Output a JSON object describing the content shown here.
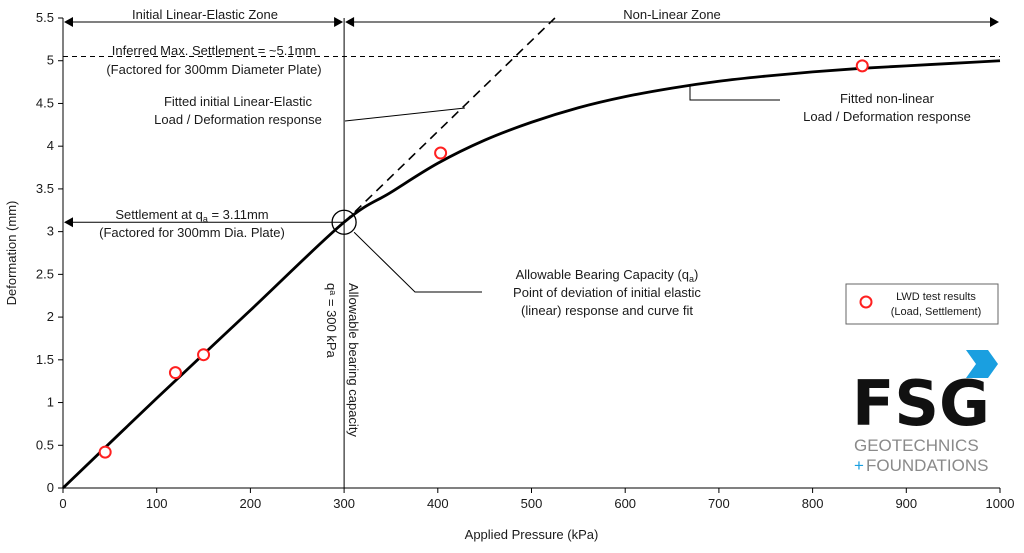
{
  "chart_data": {
    "type": "line",
    "xlabel": "Applied Pressure (kPa)",
    "ylabel": "Deformation (mm)",
    "xlim": [
      0,
      1000
    ],
    "ylim": [
      0,
      5.5
    ],
    "x_ticks": [
      0,
      100,
      200,
      300,
      400,
      500,
      600,
      700,
      800,
      900,
      1000
    ],
    "y_ticks": [
      0,
      0.5,
      1,
      1.5,
      2,
      2.5,
      3,
      3.5,
      4,
      4.5,
      5,
      5.5
    ],
    "grid": false,
    "series": [
      {
        "name": "LWD test results (Load, Settlement)",
        "kind": "scatter",
        "color": "#ff2020",
        "points": [
          [
            45,
            0.42
          ],
          [
            120,
            1.35
          ],
          [
            150,
            1.56
          ],
          [
            403,
            3.92
          ],
          [
            853,
            4.94
          ]
        ]
      },
      {
        "kind": "curve",
        "color": "#000000",
        "points": [
          [
            0,
            0
          ],
          [
            100,
            1.05
          ],
          [
            200,
            2.08
          ],
          [
            300,
            3.11
          ],
          [
            350,
            3.46
          ],
          [
            400,
            3.8
          ],
          [
            450,
            4.07
          ],
          [
            500,
            4.28
          ],
          [
            550,
            4.45
          ],
          [
            600,
            4.58
          ],
          [
            650,
            4.68
          ],
          [
            700,
            4.76
          ],
          [
            750,
            4.82
          ],
          [
            800,
            4.87
          ],
          [
            850,
            4.91
          ],
          [
            900,
            4.94
          ],
          [
            950,
            4.97
          ],
          [
            1000,
            5.0
          ]
        ]
      },
      {
        "kind": "dashed-line",
        "color": "#000000",
        "points": [
          [
            300,
            3.11
          ],
          [
            525,
            5.5
          ]
        ]
      }
    ],
    "reference_lines": {
      "settlement_max": 5.05,
      "qa": 300,
      "settlement_at_qa": 3.11
    },
    "zones": {
      "initial_label": "Initial Linear-Elastic Zone",
      "nonlinear_label": "Non-Linear Zone"
    },
    "annotations": {
      "max_settlement_line1": "Inferred Max. Settlement = ~5.1mm",
      "max_settlement_line2": "(Factored for 300mm Diameter Plate)",
      "fitted_linear_line1": "Fitted initial Linear-Elastic",
      "fitted_linear_line2": "Load / Deformation response",
      "fitted_nonlinear_line1": "Fitted non-linear",
      "fitted_nonlinear_line2": "Load / Deformation response",
      "settlement_qa_prefix": "Settlement at q",
      "settlement_qa_sub": "a",
      "settlement_qa_suffix": " = 3.11mm",
      "settlement_qa_line2": "(Factored for 300mm Dia. Plate)",
      "abc_line1_prefix": "Allowable Bearing Capacity (q",
      "abc_line1_sub": "a",
      "abc_line1_suffix": ")",
      "abc_line2": "Point of deviation of initial elastic",
      "abc_line3": "(linear) response and curve fit",
      "vertical_line1": "Allowable bearing capacity",
      "vertical_line2_prefix": "q",
      "vertical_line2_sub": "a",
      "vertical_line2_suffix": " = 300 kPa"
    },
    "legend": {
      "line1": "LWD test results",
      "line2": "(Load, Settlement)"
    }
  },
  "logo": {
    "main": "FSG",
    "line1": "GEOTECHNICS",
    "line2_plus": "+",
    "line2": "FOUNDATIONS",
    "accent_color": "#1a9fe0"
  }
}
